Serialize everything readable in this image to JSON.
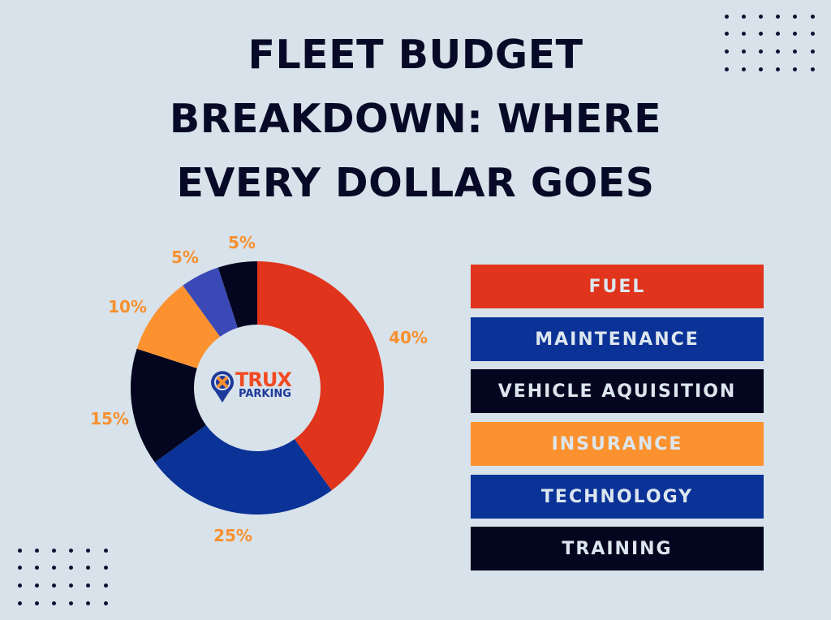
{
  "title": {
    "line1": "FLEET BUDGET",
    "line2": "BREAKDOWN: WHERE",
    "line3": "EVERY DOLLAR GOES"
  },
  "logo": {
    "brand": "TRUX",
    "sub": "PARKING",
    "icon": "map-pin-x-icon"
  },
  "colors": {
    "background": "#d8e2ea",
    "title": "#070a26",
    "label": "#f7902f",
    "fuel": "#e0341c",
    "maintenance": "#0a3297",
    "vehicle_acquisition": "#04061f",
    "insurance": "#fb922f",
    "technology": "#3b49b6",
    "training": "#04061f"
  },
  "slice_labels": [
    "40%",
    "25%",
    "15%",
    "10%",
    "5%",
    "5%"
  ],
  "legend": [
    {
      "label": "FUEL",
      "color": "#e0341c"
    },
    {
      "label": "MAINTENANCE",
      "color": "#0a3297"
    },
    {
      "label": "VEHICLE AQUISITION",
      "color": "#04061f"
    },
    {
      "label": "INSURANCE",
      "color": "#fb922f"
    },
    {
      "label": "TECHNOLOGY",
      "color": "#0a3297"
    },
    {
      "label": "TRAINING",
      "color": "#04061f"
    }
  ],
  "chart_data": {
    "type": "pie",
    "variant": "donut",
    "title": "FLEET BUDGET BREAKDOWN: WHERE EVERY DOLLAR GOES",
    "categories": [
      "Fuel",
      "Maintenance",
      "Vehicle Aquisition",
      "Insurance",
      "Technology",
      "Training"
    ],
    "values": [
      40,
      25,
      15,
      10,
      5,
      5
    ],
    "unit": "%",
    "slice_colors": [
      "#e0341c",
      "#0a3297",
      "#04061f",
      "#fb922f",
      "#3b49b6",
      "#04061f"
    ],
    "start_angle": "12 o'clock",
    "direction": "clockwise",
    "legend_position": "right",
    "center_label": "TRUX PARKING"
  }
}
